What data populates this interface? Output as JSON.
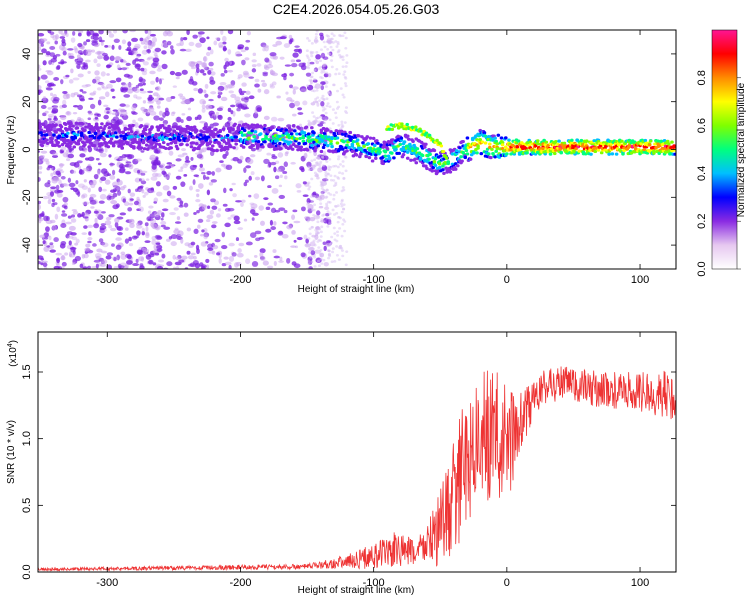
{
  "title": "C2E4.2026.054.05.26.G03",
  "chart_data": [
    {
      "type": "heatmap",
      "xlabel": "Height of straight line (km)",
      "ylabel": "Frequency (Hz)",
      "xlim": [
        -352,
        127
      ],
      "ylim": [
        -50,
        50
      ],
      "xticks": [
        -300,
        -200,
        -100,
        0,
        100
      ],
      "yticks": [
        -40,
        -20,
        0,
        20,
        40
      ],
      "colorbar": {
        "label": "Normalized spectral amplitude",
        "range": [
          0,
          1
        ],
        "ticks": [
          "0.0",
          "0.2",
          "0.4",
          "0.6",
          "0.8"
        ],
        "tick_values": [
          0,
          0.2,
          0.4,
          0.6,
          0.8
        ],
        "colors": [
          "#ffffff",
          "#e6c8f0",
          "#8a2be2",
          "#0000ff",
          "#00bfff",
          "#00ff7f",
          "#7fff00",
          "#ffff00",
          "#ff8c00",
          "#ff0000",
          "#ff1493"
        ]
      },
      "ridge": {
        "x": [
          -350,
          -320,
          -300,
          -280,
          -260,
          -240,
          -220,
          -200,
          -180,
          -160,
          -140,
          -120,
          -100,
          -90,
          -80,
          -70,
          -60,
          -50,
          -40,
          -30,
          -20,
          -10,
          0,
          20,
          40,
          60,
          80,
          100,
          125
        ],
        "y": [
          6,
          6,
          6,
          5,
          5,
          5,
          4,
          6,
          5,
          5,
          4,
          3,
          0,
          -2,
          2,
          0,
          -3,
          -6,
          -4,
          0,
          3,
          1,
          1,
          1,
          1,
          1,
          1,
          1,
          1
        ]
      },
      "branch": {
        "x": [
          -90,
          -80,
          -70,
          -60,
          -50,
          -45
        ],
        "y": [
          9,
          10,
          9,
          6,
          2,
          -4
        ]
      }
    },
    {
      "type": "line",
      "xlabel": "Height of straight line (km)",
      "ylabel": "SNR (10 * v/v)",
      "scale_label": "(x10",
      "scale_exponent": "4",
      "scale_suffix": ")",
      "xlim": [
        -352,
        127
      ],
      "ylim": [
        0,
        1.8
      ],
      "xticks": [
        -300,
        -200,
        -100,
        0,
        100
      ],
      "yticks": [
        0.0,
        0.5,
        1.0,
        1.5
      ],
      "ytick_labels": [
        "0.0",
        "0.5",
        "1.0",
        "1.5"
      ],
      "line_color": "#ee3333",
      "envelope": {
        "x": [
          -352,
          -250,
          -150,
          -120,
          -100,
          -80,
          -70,
          -60,
          -50,
          -40,
          -30,
          -20,
          -10,
          0,
          10,
          20,
          30,
          40,
          60,
          80,
          100,
          127
        ],
        "mean": [
          0.02,
          0.03,
          0.04,
          0.08,
          0.12,
          0.17,
          0.14,
          0.22,
          0.32,
          0.55,
          0.85,
          1.0,
          1.05,
          0.95,
          1.1,
          1.3,
          1.4,
          1.42,
          1.38,
          1.36,
          1.35,
          1.32
        ],
        "spread": [
          0.01,
          0.015,
          0.02,
          0.05,
          0.1,
          0.15,
          0.1,
          0.15,
          0.3,
          0.45,
          0.5,
          0.5,
          0.5,
          0.45,
          0.25,
          0.15,
          0.14,
          0.14,
          0.14,
          0.14,
          0.15,
          0.2
        ]
      }
    }
  ]
}
